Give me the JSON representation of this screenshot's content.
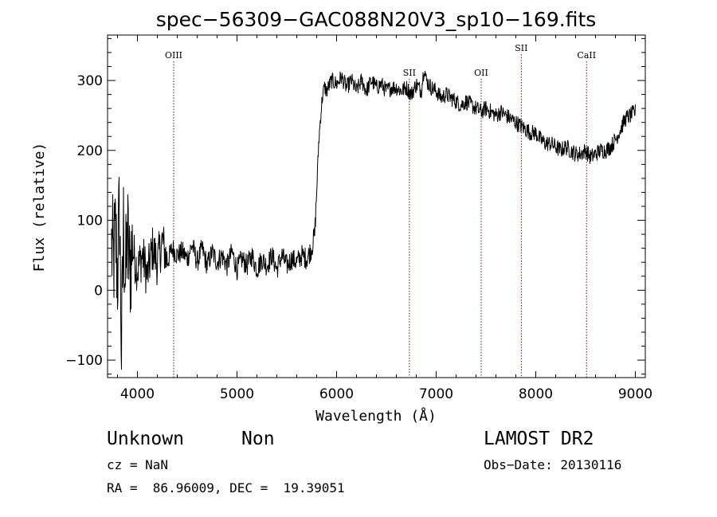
{
  "chart_data": {
    "type": "line",
    "title": "spec−56309−GAC088N20V3_sp10−169.fits",
    "xlabel": "Wavelength (Å)",
    "ylabel": "Flux (relative)",
    "xlim": [
      3700,
      9100
    ],
    "ylim": [
      -125,
      365
    ],
    "xticks": [
      4000,
      5000,
      6000,
      7000,
      8000,
      9000
    ],
    "xtick_labels": [
      "4000",
      "5000",
      "6000",
      "7000",
      "8000",
      "9000"
    ],
    "yticks": [
      -100,
      0,
      100,
      200,
      300
    ],
    "ytick_labels": [
      "−100",
      "0",
      "100",
      "200",
      "300"
    ],
    "grid": false,
    "spectral_lines": [
      {
        "label": "OIII",
        "x": 4364,
        "label_y": 332
      },
      {
        "label": "SII",
        "x": 6731,
        "label_y": 307
      },
      {
        "label": "OII",
        "x": 7452,
        "label_y": 307
      },
      {
        "label": "SII",
        "x": 7855,
        "label_y": 342
      },
      {
        "label": "CaII",
        "x": 8510,
        "label_y": 332
      }
    ],
    "series": [
      {
        "x": [
          3740,
          3760,
          3780,
          3800,
          3820,
          3840,
          3860,
          3880,
          3900,
          3920,
          3950,
          3980,
          4000,
          4050,
          4100,
          4150,
          4200,
          4250,
          4300,
          4350,
          4400,
          4450,
          4500,
          4550,
          4600,
          4650,
          4700,
          4750,
          4800,
          4850,
          4900,
          4950,
          5000,
          5050,
          5100,
          5150,
          5200,
          5250,
          5300,
          5350,
          5400,
          5450,
          5500,
          5550,
          5600,
          5650,
          5700,
          5750,
          5780,
          5800,
          5820,
          5840,
          5860,
          5880,
          5900,
          5950,
          6000,
          6050,
          6100,
          6150,
          6200,
          6250,
          6300,
          6350,
          6400,
          6450,
          6500,
          6550,
          6600,
          6650,
          6700,
          6750,
          6800,
          6850,
          6880,
          6900,
          6950,
          7000,
          7050,
          7100,
          7150,
          7200,
          7250,
          7300,
          7350,
          7400,
          7450,
          7500,
          7550,
          7600,
          7650,
          7700,
          7750,
          7800,
          7850,
          7900,
          7950,
          8000,
          8050,
          8100,
          8150,
          8200,
          8250,
          8300,
          8350,
          8400,
          8450,
          8500,
          8550,
          8600,
          8650,
          8700,
          8750,
          8800,
          8850,
          8900,
          8950,
          9000
        ],
        "values": [
          60,
          40,
          80,
          20,
          120,
          -90,
          90,
          10,
          80,
          30,
          60,
          40,
          30,
          50,
          20,
          60,
          40,
          70,
          40,
          60,
          50,
          55,
          45,
          65,
          40,
          60,
          35,
          55,
          40,
          50,
          35,
          55,
          30,
          45,
          35,
          50,
          30,
          45,
          35,
          50,
          30,
          50,
          35,
          45,
          40,
          50,
          45,
          60,
          80,
          140,
          210,
          250,
          280,
          290,
          285,
          300,
          295,
          305,
          290,
          300,
          285,
          300,
          285,
          300,
          290,
          295,
          285,
          290,
          290,
          285,
          290,
          280,
          295,
          285,
          320,
          300,
          290,
          285,
          275,
          280,
          275,
          270,
          265,
          270,
          265,
          260,
          255,
          260,
          255,
          250,
          255,
          250,
          245,
          240,
          235,
          230,
          225,
          225,
          215,
          210,
          210,
          205,
          200,
          205,
          200,
          195,
          195,
          200,
          190,
          195,
          200,
          200,
          205,
          215,
          230,
          245,
          250,
          255
        ]
      }
    ]
  },
  "info": {
    "class": "Unknown",
    "subclass": "Non",
    "survey": "LAMOST DR2",
    "cz": "cz = NaN",
    "obs_date": "Obs−Date: 20130116",
    "coords": "RA =  86.96009, DEC =  19.39051"
  }
}
